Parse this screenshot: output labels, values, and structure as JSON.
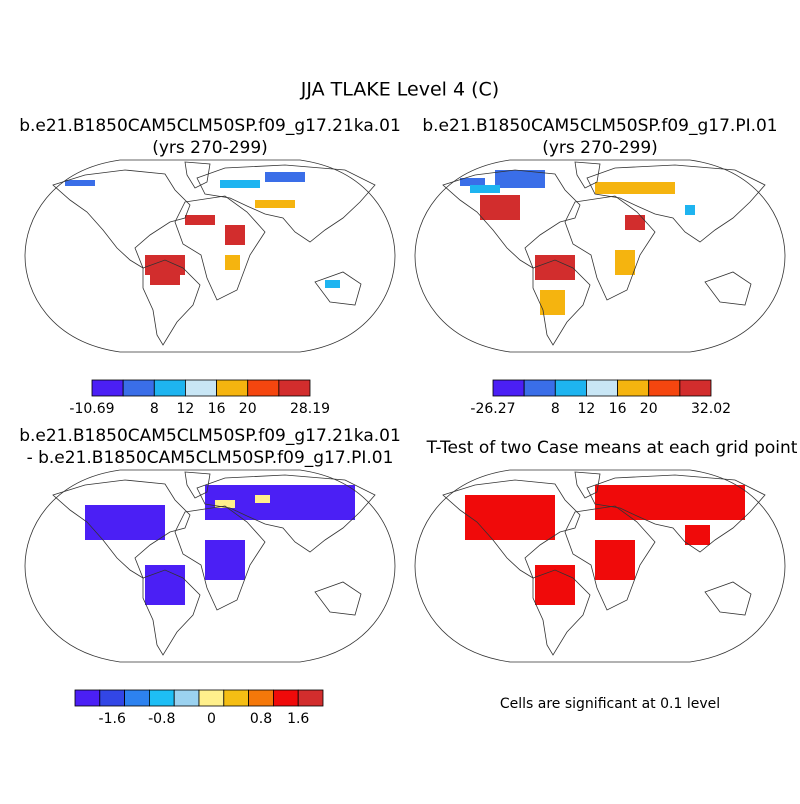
{
  "title": "JJA TLAKE Level 4 (C)",
  "panels": [
    {
      "title": [
        "b.e21.B1850CAM5CLM50SP.f09_g17.21ka.01",
        "(yrs 270-299)"
      ],
      "colorbar": {
        "colors": [
          "#4b1ff5",
          "#3a6ee8",
          "#1eb4f0",
          "#c8e6f5",
          "#f5b40f",
          "#f5460f",
          "#d22d2d"
        ],
        "labels": [
          "-10.69",
          "8",
          "12",
          "16",
          "20",
          "28.19"
        ]
      }
    },
    {
      "title": [
        "b.e21.B1850CAM5CLM50SP.f09_g17.PI.01",
        "(yrs 270-299)"
      ],
      "colorbar": {
        "colors": [
          "#4b1ff5",
          "#3a6ee8",
          "#1eb4f0",
          "#c8e6f5",
          "#f5b40f",
          "#f5460f",
          "#d22d2d"
        ],
        "labels": [
          "-26.27",
          "8",
          "12",
          "16",
          "20",
          "32.02"
        ]
      }
    },
    {
      "title": [
        "b.e21.B1850CAM5CLM50SP.f09_g17.21ka.01",
        "- b.e21.B1850CAM5CLM50SP.f09_g17.PI.01"
      ],
      "colorbar": {
        "colors": [
          "#4b1ff5",
          "#3246e6",
          "#2d82f0",
          "#1ebef5",
          "#9bd2f0",
          "#fff08c",
          "#f5be14",
          "#f5780a",
          "#f00a0a",
          "#d22d2d"
        ],
        "labels": [
          "-1.6",
          "-0.8",
          "0",
          "0.8",
          "1.6"
        ]
      }
    },
    {
      "title": [
        "T-Test of two Case means at each grid point"
      ],
      "note": "Cells are significant at 0.1 level"
    }
  ]
}
